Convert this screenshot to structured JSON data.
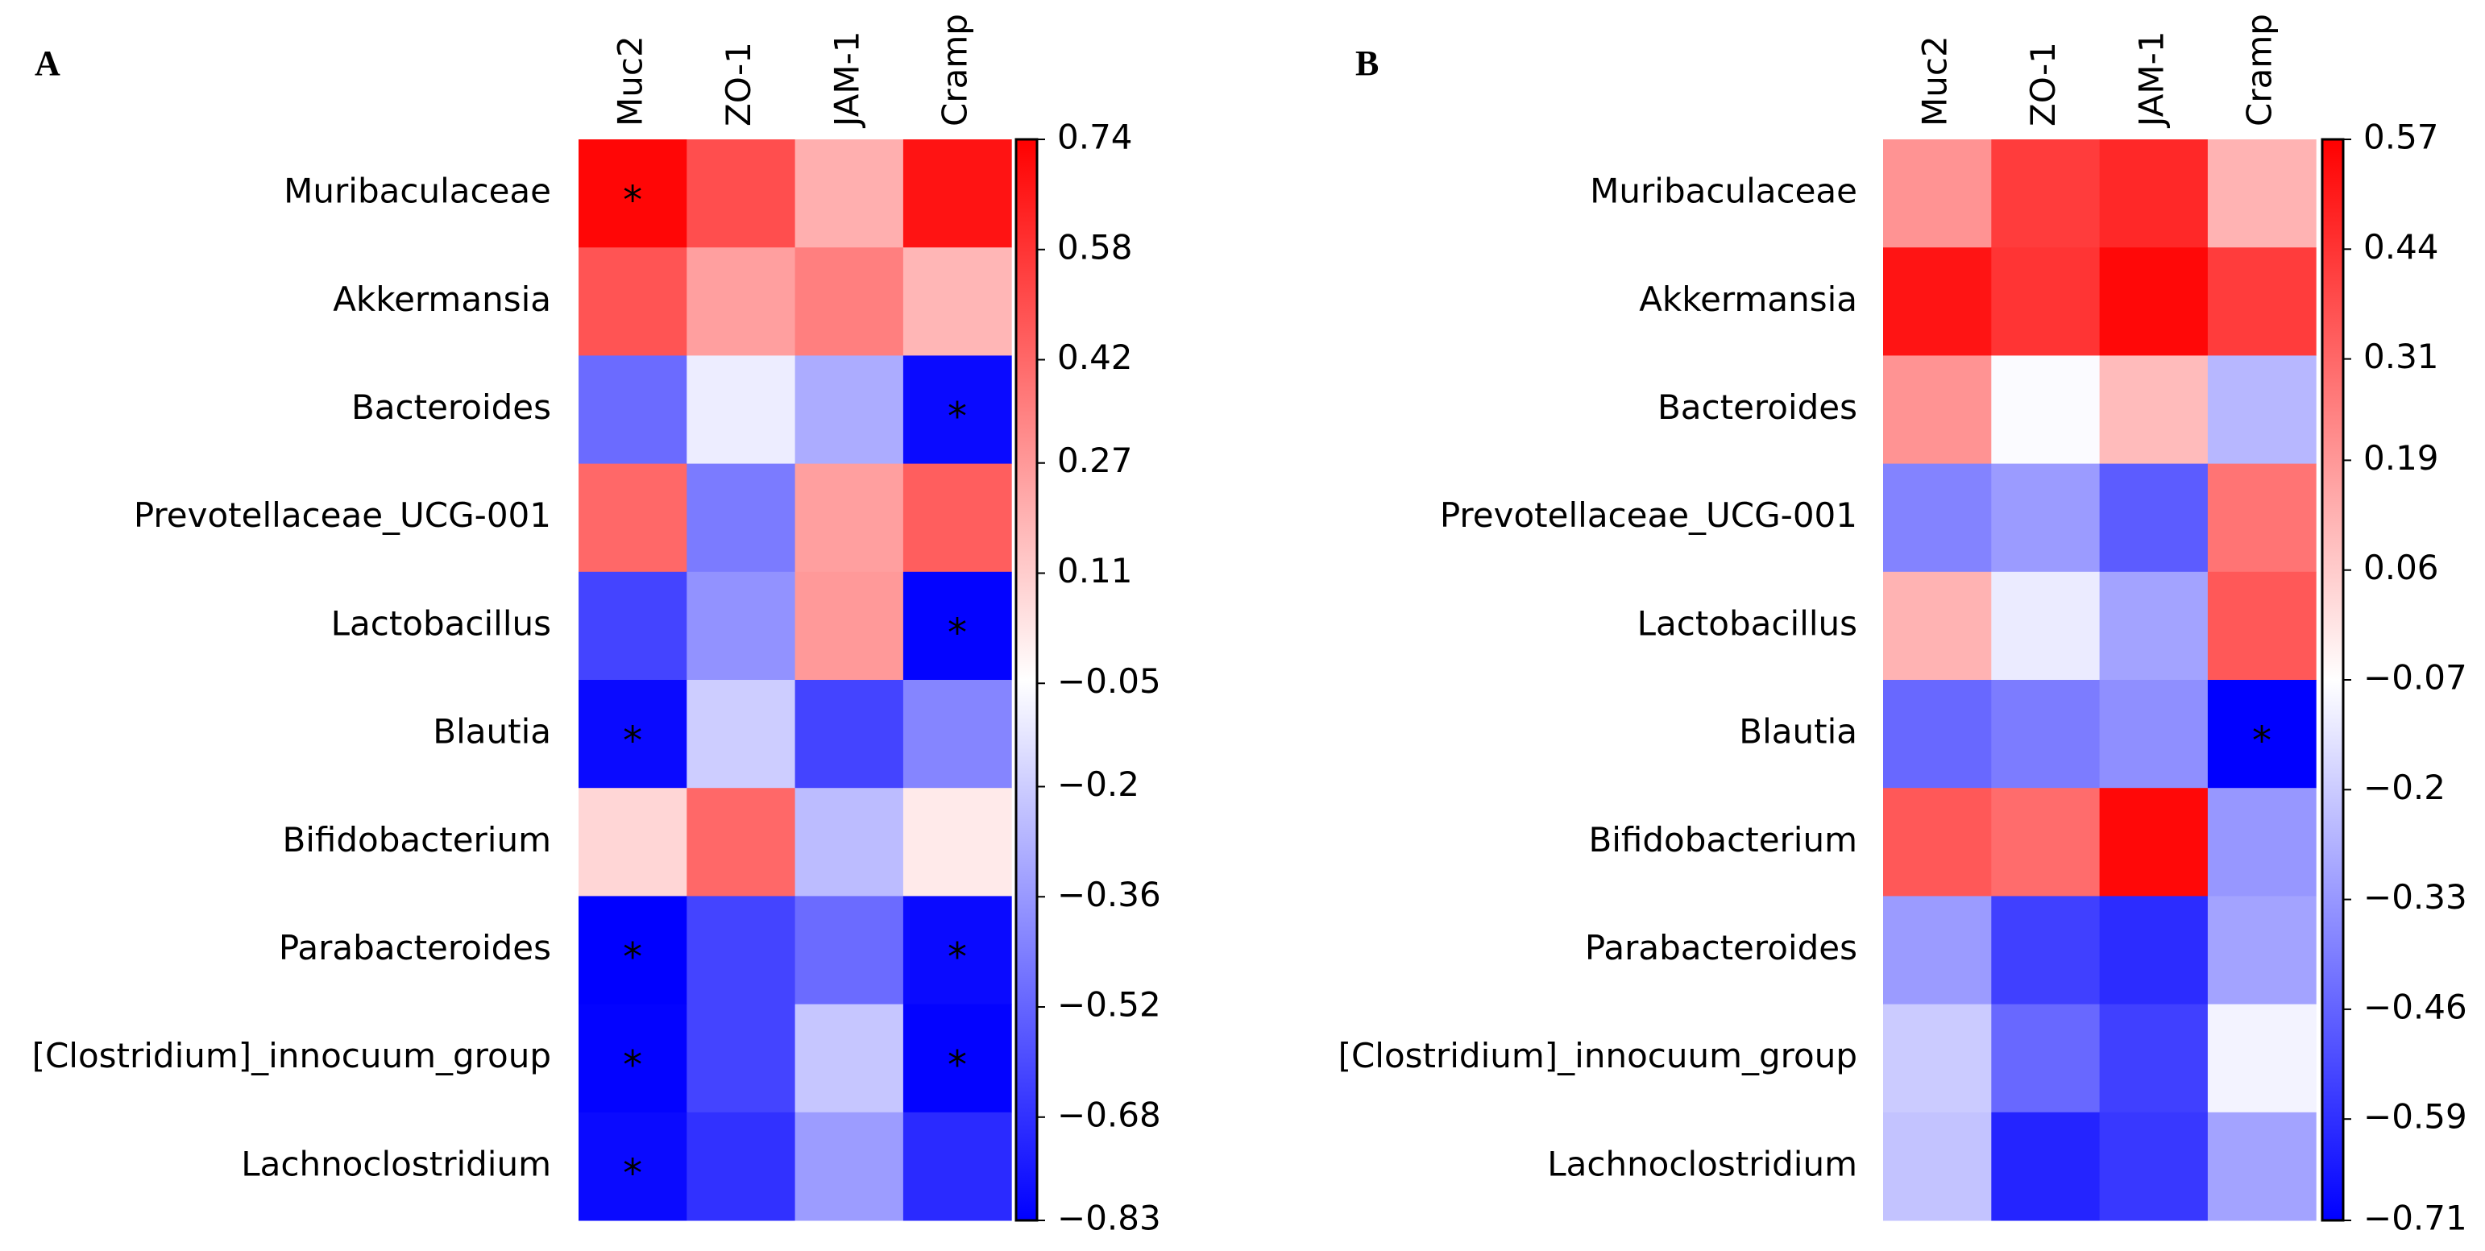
{
  "chart_data": [
    {
      "type": "heatmap",
      "panel": "A",
      "colormap": "bwr",
      "columns": [
        "Muc2",
        "ZO-1",
        "JAM-1",
        "Cramp"
      ],
      "rows": [
        "Muribaculaceae",
        "Akkermansia",
        "Bacteroides",
        "Prevotellaceae_UCG-001",
        "Lactobacillus",
        "Blautia",
        "Bifidobacterium",
        "Parabacteroides",
        "[Clostridium]_innocuum_group",
        "Lachnoclostridium"
      ],
      "values": [
        [
          0.72,
          0.5,
          0.2,
          0.68
        ],
        [
          0.48,
          0.25,
          0.35,
          0.18
        ],
        [
          -0.5,
          -0.1,
          -0.3,
          -0.8
        ],
        [
          0.42,
          -0.45,
          0.25,
          0.45
        ],
        [
          -0.62,
          -0.38,
          0.27,
          -0.82
        ],
        [
          -0.8,
          -0.2,
          -0.62,
          -0.42
        ],
        [
          0.08,
          0.42,
          -0.25,
          0.02
        ],
        [
          -0.83,
          -0.62,
          -0.5,
          -0.8
        ],
        [
          -0.82,
          -0.62,
          -0.22,
          -0.82
        ],
        [
          -0.8,
          -0.68,
          -0.35,
          -0.7
        ]
      ],
      "significance": [
        [
          "*",
          null,
          null,
          null
        ],
        [
          null,
          null,
          null,
          null
        ],
        [
          null,
          null,
          null,
          "*"
        ],
        [
          null,
          null,
          null,
          null
        ],
        [
          null,
          null,
          null,
          "*"
        ],
        [
          "*",
          null,
          null,
          null
        ],
        [
          null,
          null,
          null,
          null
        ],
        [
          "*",
          null,
          null,
          "*"
        ],
        [
          "*",
          null,
          null,
          "*"
        ],
        [
          "*",
          null,
          null,
          null
        ]
      ],
      "clim": [
        -0.83,
        0.74
      ],
      "cticks": [
        0.74,
        0.58,
        0.42,
        0.27,
        0.11,
        {
          "value": -0.05,
          "label": "−0.05"
        },
        {
          "value": -0.2,
          "label": "−0.2"
        },
        {
          "value": -0.36,
          "label": "−0.36"
        },
        {
          "value": -0.52,
          "label": "−0.52"
        },
        {
          "value": -0.68,
          "label": "−0.68"
        },
        {
          "value": -0.83,
          "label": "−0.83"
        }
      ]
    },
    {
      "type": "heatmap",
      "panel": "B",
      "colormap": "bwr",
      "columns": [
        "Muc2",
        "ZO-1",
        "JAM-1",
        "Cramp"
      ],
      "rows": [
        "Muribaculaceae",
        "Akkermansia",
        "Bacteroides",
        "Prevotellaceae_UCG-001",
        "Lactobacillus",
        "Blautia",
        "Bifidobacterium",
        "Parabacteroides",
        "[Clostridium]_innocuum_group",
        "Lachnoclostridium"
      ],
      "values": [
        [
          0.2,
          0.42,
          0.47,
          0.12
        ],
        [
          0.52,
          0.44,
          0.55,
          0.42
        ],
        [
          0.2,
          -0.08,
          0.1,
          -0.25
        ],
        [
          -0.38,
          -0.32,
          -0.48,
          0.28
        ],
        [
          0.12,
          -0.12,
          -0.3,
          0.35
        ],
        [
          -0.45,
          -0.4,
          -0.35,
          -0.71
        ],
        [
          0.35,
          0.3,
          0.55,
          -0.33
        ],
        [
          -0.32,
          -0.55,
          -0.6,
          -0.3
        ],
        [
          -0.2,
          -0.45,
          -0.55,
          -0.1
        ],
        [
          -0.22,
          -0.62,
          -0.57,
          -0.3
        ]
      ],
      "significance": [
        [
          null,
          null,
          null,
          null
        ],
        [
          null,
          null,
          null,
          null
        ],
        [
          null,
          null,
          null,
          null
        ],
        [
          null,
          null,
          null,
          null
        ],
        [
          null,
          null,
          null,
          null
        ],
        [
          null,
          null,
          null,
          "*"
        ],
        [
          null,
          null,
          null,
          null
        ],
        [
          null,
          null,
          null,
          null
        ],
        [
          null,
          null,
          null,
          null
        ],
        [
          null,
          null,
          null,
          null
        ]
      ],
      "clim": [
        -0.71,
        0.57
      ],
      "cticks": [
        0.57,
        0.44,
        0.31,
        0.19,
        0.06,
        {
          "value": -0.07,
          "label": "−0.07"
        },
        {
          "value": -0.2,
          "label": "−0.2"
        },
        {
          "value": -0.33,
          "label": "−0.33"
        },
        {
          "value": -0.46,
          "label": "−0.46"
        },
        {
          "value": -0.59,
          "label": "−0.59"
        },
        {
          "value": -0.71,
          "label": "−0.71"
        }
      ]
    }
  ]
}
